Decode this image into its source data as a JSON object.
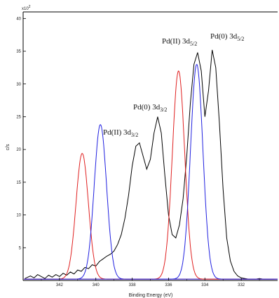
{
  "chart_data": {
    "type": "line",
    "title": "",
    "xlabel": "Binding Energy (eV)",
    "ylabel": "c/s",
    "y_multiplier_label": "x10",
    "y_multiplier_exp": "2",
    "xlim": [
      330,
      344
    ],
    "x_reversed": true,
    "ylim": [
      0,
      41
    ],
    "x_ticks": [
      342,
      340,
      338,
      336,
      334,
      332
    ],
    "y_ticks": [
      5,
      10,
      15,
      20,
      25,
      30,
      35,
      40
    ],
    "grid": false,
    "legend": "none",
    "colors": {
      "envelope": "#000000",
      "pd2": "#e02020",
      "pd0": "#2020e0",
      "axis": "#000000"
    },
    "series": [
      {
        "role": "envelope",
        "x": [
          343.9,
          343.6,
          343.4,
          343.2,
          343.0,
          342.8,
          342.6,
          342.4,
          342.2,
          342.0,
          341.8,
          341.6,
          341.4,
          341.2,
          341.0,
          340.8,
          340.6,
          340.4,
          340.2,
          340.0,
          339.8,
          339.6,
          339.4,
          339.2,
          339.0,
          338.8,
          338.6,
          338.4,
          338.2,
          338.0,
          337.8,
          337.6,
          337.4,
          337.2,
          337.0,
          336.8,
          336.6,
          336.4,
          336.2,
          336.0,
          335.8,
          335.6,
          335.4,
          335.2,
          335.0,
          334.8,
          334.6,
          334.4,
          334.2,
          334.0,
          333.8,
          333.6,
          333.4,
          333.2,
          333.0,
          332.8,
          332.6,
          332.4,
          332.2,
          332.0,
          331.8,
          331.6,
          331.4,
          331.2,
          331.0,
          330.8,
          330.6,
          330.4,
          330.2
        ],
        "y": [
          0.3,
          0.7,
          0.4,
          0.9,
          0.6,
          0.3,
          0.8,
          0.5,
          0.9,
          0.6,
          1.1,
          0.8,
          1.3,
          1.0,
          1.6,
          1.4,
          2.0,
          1.8,
          2.4,
          2.2,
          2.9,
          3.3,
          3.7,
          4.0,
          4.5,
          5.5,
          7.0,
          9.5,
          13.0,
          17.5,
          20.5,
          21.0,
          19.0,
          17.0,
          18.5,
          22.5,
          25.0,
          22.5,
          16.0,
          10.0,
          7.0,
          6.5,
          8.5,
          12.5,
          19.0,
          27.0,
          33.0,
          34.8,
          32.0,
          25.0,
          29.0,
          35.2,
          32.5,
          24.0,
          14.0,
          6.5,
          3.0,
          1.4,
          0.7,
          0.4,
          0.3,
          0.2,
          0.2,
          0.2,
          0.3,
          0.2,
          0.2,
          0.2,
          0.2
        ]
      },
      {
        "role": "pd2",
        "component": "3d3/2",
        "center": 340.75,
        "amplitude": 19.2,
        "sigma": 0.34
      },
      {
        "role": "pd0",
        "component": "3d3/2",
        "center": 339.75,
        "amplitude": 23.6,
        "sigma": 0.34
      },
      {
        "role": "pd2",
        "component": "3d5/2",
        "center": 335.45,
        "amplitude": 31.8,
        "sigma": 0.34
      },
      {
        "role": "pd0",
        "component": "3d5/2",
        "center": 334.45,
        "amplitude": 32.8,
        "sigma": 0.34
      }
    ],
    "annotations": [
      {
        "main": "Pd(II) 3d",
        "sub": "3/2",
        "anchor": "low-left-peak"
      },
      {
        "main": "Pd(0) 3d",
        "sub": "3/2",
        "anchor": "left-peak"
      },
      {
        "main": "Pd(II) 3d",
        "sub": "5/2",
        "anchor": "high-left-peak"
      },
      {
        "main": "Pd(0) 3d",
        "sub": "5/2",
        "anchor": "high-right-peak"
      }
    ]
  }
}
